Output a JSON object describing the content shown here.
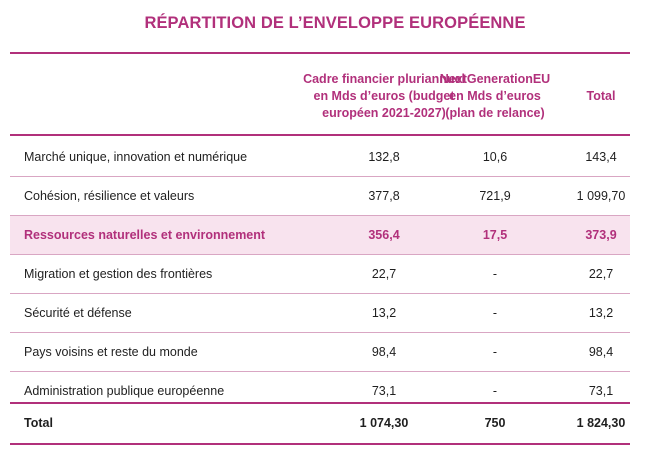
{
  "title": "RÉPARTITION DE L’ENVELOPPE EUROPÉENNE",
  "columns": {
    "col1": [
      "Cadre financier pluriannuel",
      "en Mds d’euros (budget",
      "européen 2021-2027)"
    ],
    "col2": [
      "NextGenerationEU",
      "en Mds d’euros",
      "(plan de relance)"
    ],
    "col3": "Total"
  },
  "rows": [
    {
      "label": "Marché unique, innovation et numérique",
      "mff": "132,8",
      "ngeu": "10,6",
      "total": "143,4"
    },
    {
      "label": "Cohésion, résilience et valeurs",
      "mff": "377,8",
      "ngeu": "721,9",
      "total": "1 099,70"
    },
    {
      "label": "Ressources naturelles et environnement",
      "mff": "356,4",
      "ngeu": "17,5",
      "total": "373,9"
    },
    {
      "label": "Migration et gestion des frontières",
      "mff": "22,7",
      "ngeu": "-",
      "total": "22,7"
    },
    {
      "label": "Sécurité et défense",
      "mff": "13,2",
      "ngeu": "-",
      "total": "13,2"
    },
    {
      "label": "Pays voisins et reste du monde",
      "mff": "98,4",
      "ngeu": "-",
      "total": "98,4"
    },
    {
      "label": "Administration publique européenne",
      "mff": "73,1",
      "ngeu": "-",
      "total": "73,1"
    }
  ],
  "total_row": {
    "label": "Total",
    "mff": "1 074,30",
    "ngeu": "750",
    "total": "1 824,30"
  },
  "colors": {
    "accent": "#b1307b",
    "highlight_bg": "#f8e3ee"
  }
}
